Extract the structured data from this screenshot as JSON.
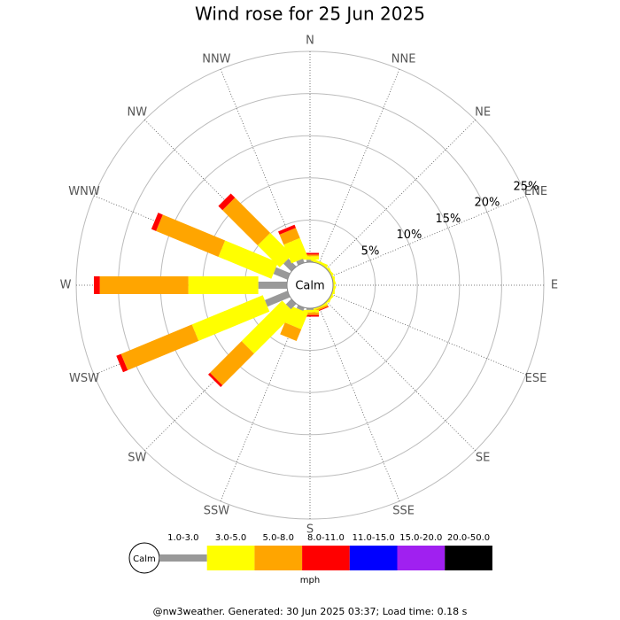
{
  "chart_data": {
    "type": "windrose",
    "title": "Wind rose for 25 Jun 2025",
    "directions": [
      "N",
      "NNE",
      "NE",
      "ENE",
      "E",
      "ESE",
      "SE",
      "SSE",
      "S",
      "SSW",
      "SW",
      "WSW",
      "W",
      "WNW",
      "NW",
      "NNW"
    ],
    "series": [
      {
        "name": "1.0-3.0",
        "color": "#999999",
        "values": [
          0.3,
          0,
          0,
          0,
          0,
          0,
          0,
          0,
          0.2,
          0.4,
          0.9,
          2.9,
          3.4,
          1.8,
          1.3,
          0.5
        ]
      },
      {
        "name": "3.0-5.0",
        "color": "#ffff00",
        "values": [
          0.4,
          0.3,
          0.2,
          0.2,
          0.2,
          0.2,
          0.2,
          0.2,
          0.3,
          2.1,
          6.8,
          9.1,
          8.3,
          6.8,
          3.7,
          2.4
        ]
      },
      {
        "name": "5.0-8.0",
        "color": "#ffa500",
        "values": [
          0.2,
          0,
          0,
          0,
          0,
          0,
          0,
          0.2,
          0.3,
          1.5,
          5.3,
          9.1,
          10.5,
          8.0,
          5.9,
          1.3
        ]
      },
      {
        "name": "8.0-11.0",
        "color": "#ff0000",
        "values": [
          0.2,
          0,
          0,
          0,
          0,
          0,
          0,
          0.1,
          0.2,
          0,
          0.3,
          0.6,
          0.7,
          0.6,
          0.7,
          0.4
        ]
      },
      {
        "name": "11.0-15.0",
        "color": "#0000ff",
        "values": [
          0,
          0,
          0,
          0,
          0,
          0,
          0,
          0,
          0,
          0,
          0,
          0,
          0,
          0,
          0,
          0
        ]
      },
      {
        "name": "15.0-20.0",
        "color": "#a020f0",
        "values": [
          0,
          0,
          0,
          0,
          0,
          0,
          0,
          0,
          0,
          0,
          0,
          0,
          0,
          0,
          0,
          0
        ]
      },
      {
        "name": "20.0-50.0",
        "color": "#000000",
        "values": [
          0,
          0,
          0,
          0,
          0,
          0,
          0,
          0,
          0,
          0,
          0,
          0,
          0,
          0,
          0,
          0
        ]
      }
    ],
    "rlim": [
      0,
      25
    ],
    "rticks": [
      {
        "value": 5,
        "label": "5%"
      },
      {
        "value": 10,
        "label": "10%"
      },
      {
        "value": 15,
        "label": "15%"
      },
      {
        "value": 20,
        "label": "20%"
      },
      {
        "value": 25,
        "label": "25%"
      }
    ],
    "calm_label": "Calm",
    "unit": "mph",
    "footer": "@nw3weather. Generated: 30 Jun 2025 03:37; Load time: 0.18 s"
  }
}
